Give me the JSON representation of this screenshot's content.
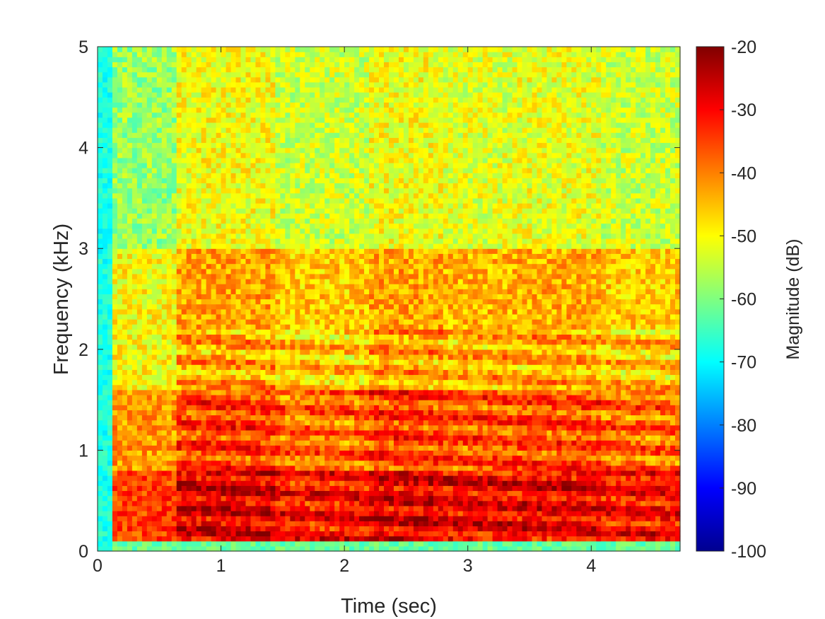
{
  "chart_data": {
    "type": "heatmap",
    "title": "",
    "xlabel": "Time (sec)",
    "ylabel": "Frequency (kHz)",
    "xlim": [
      0,
      4.72
    ],
    "ylim": [
      0,
      5
    ],
    "xticks": [
      "0",
      "1",
      "2",
      "3",
      "4"
    ],
    "yticks": [
      "0",
      "1",
      "2",
      "3",
      "4",
      "5"
    ],
    "colorbar": {
      "label": "Magnitude (dB)",
      "range": [
        -100,
        -20
      ],
      "ticks": [
        "-20",
        "-30",
        "-40",
        "-50",
        "-60",
        "-70",
        "-80",
        "-90",
        "-100"
      ],
      "colormap": "jet"
    },
    "grid": false,
    "series": [
      {
        "segments": [
          {
            "t0": 0.0,
            "t1": 0.13,
            "level": -70
          },
          {
            "t0": 0.13,
            "t1": 0.65,
            "level": -45
          },
          {
            "t0": 0.65,
            "t1": 1.45,
            "level": -36
          },
          {
            "t0": 1.45,
            "t1": 2.2,
            "level": -40
          },
          {
            "t0": 2.2,
            "t1": 2.8,
            "level": -36
          },
          {
            "t0": 2.8,
            "t1": 3.35,
            "level": -38
          },
          {
            "t0": 3.35,
            "t1": 4.1,
            "level": -37
          },
          {
            "t0": 4.1,
            "t1": 4.72,
            "level": -40
          }
        ],
        "bands": [
          {
            "f0": 0.0,
            "f1": 0.12,
            "level": -68
          },
          {
            "f0": 0.12,
            "f1": 0.8,
            "level": -35
          },
          {
            "f0": 0.8,
            "f1": 1.6,
            "level": -42
          },
          {
            "f0": 1.6,
            "f1": 3.0,
            "level": -50
          },
          {
            "f0": 3.0,
            "f1": 5.0,
            "level": -58
          }
        ]
      }
    ]
  }
}
